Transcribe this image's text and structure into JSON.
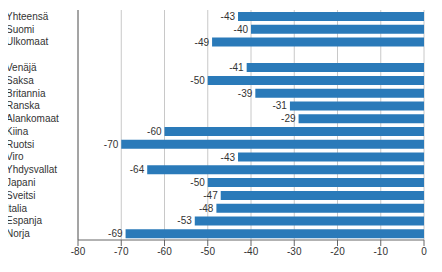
{
  "chart_data": {
    "type": "bar",
    "orientation": "horizontal",
    "categories": [
      "Yhteensä",
      "Suomi",
      "Ulkomaat",
      null,
      "Venäjä",
      "Saksa",
      "Britannia",
      "Ranska",
      "Alankomaat",
      "Kiina",
      "Ruotsi",
      "Viro",
      "Yhdysvallat",
      "Japani",
      "Sveitsi",
      "Italia",
      "Espanja",
      "Norja"
    ],
    "values": [
      -43,
      -40,
      -49,
      null,
      -41,
      -50,
      -39,
      -31,
      -29,
      -60,
      -70,
      -43,
      -64,
      -50,
      -47,
      -48,
      -53,
      -69
    ],
    "color": "#2a7ab9",
    "xlim": [
      -80,
      0
    ],
    "xticks": [
      -80,
      -70,
      -60,
      -50,
      -40,
      -30,
      -20,
      -10,
      0
    ],
    "grid": true,
    "data_labels": true
  }
}
